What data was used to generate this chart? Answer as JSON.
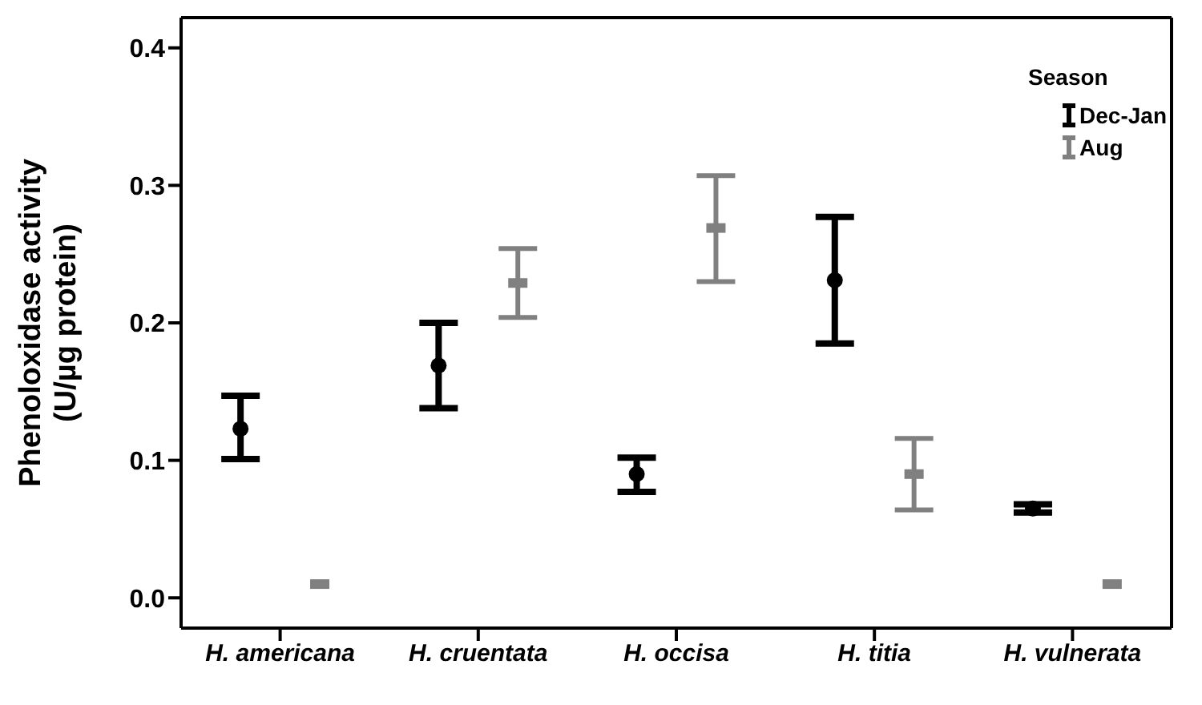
{
  "chart_data": {
    "type": "scatter",
    "ylabel": "Phenoloxidase activity\n(U/µg protein)",
    "legend_title": "Season",
    "categories": [
      "H. americana",
      "H. cruentata",
      "H. occisa",
      "H. titia",
      "H. vulnerata"
    ],
    "series": [
      {
        "name": "Dec-Jan",
        "color": "#000000",
        "marker": "circle",
        "values": [
          0.123,
          0.169,
          0.09,
          0.231,
          0.065
        ],
        "errors": [
          [
            0.101,
            0.147
          ],
          [
            0.138,
            0.2
          ],
          [
            0.077,
            0.102
          ],
          [
            0.185,
            0.277
          ],
          [
            0.062,
            0.068
          ]
        ]
      },
      {
        "name": "Aug",
        "color": "#808080",
        "marker": "square",
        "values": [
          0.01,
          0.229,
          0.269,
          0.09,
          0.01
        ],
        "errors": [
          null,
          [
            0.204,
            0.254
          ],
          [
            0.23,
            0.307
          ],
          [
            0.064,
            0.116
          ],
          null
        ]
      }
    ],
    "ylim": [
      -0.022,
      0.422
    ],
    "yticks": [
      {
        "value": 0,
        "label": "0.0"
      },
      0.1,
      0.2,
      0.3,
      0.4
    ],
    "legend": "top right"
  }
}
